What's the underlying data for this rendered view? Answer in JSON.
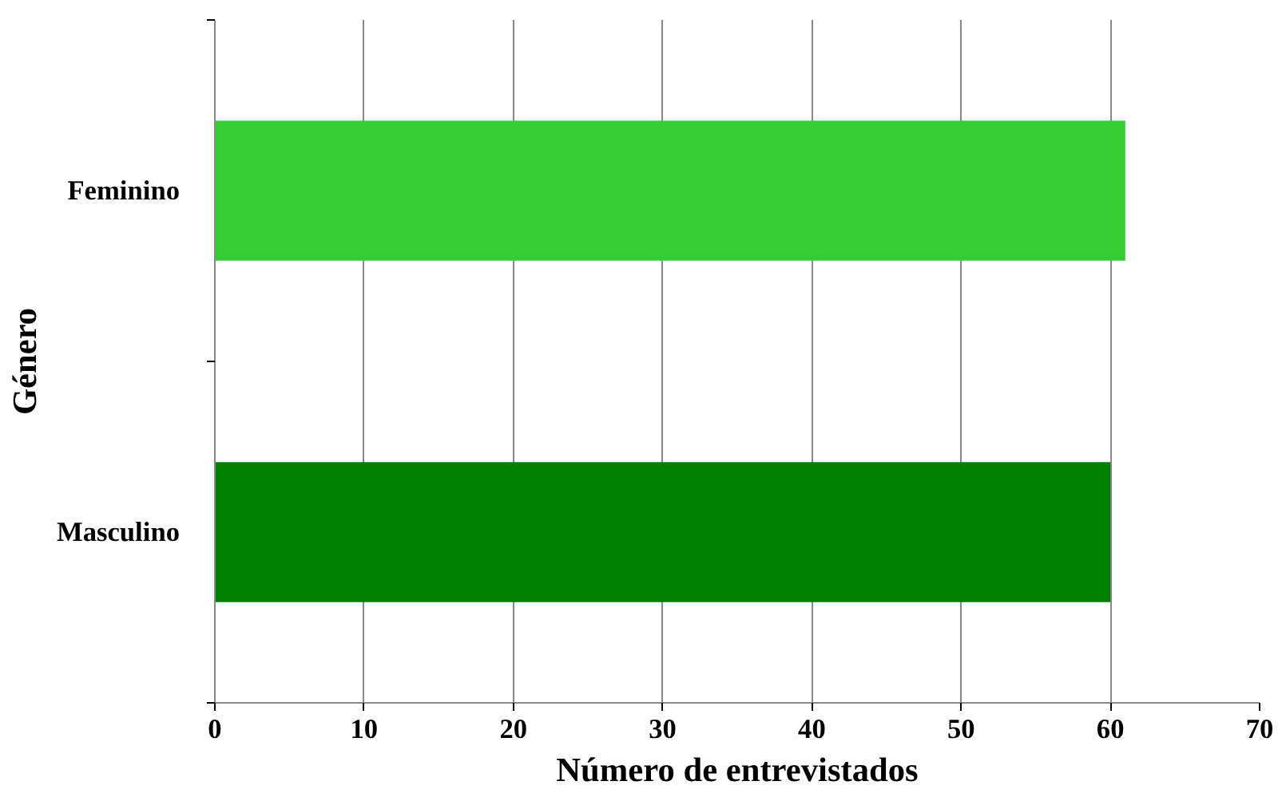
{
  "chart_data": {
    "type": "bar",
    "orientation": "horizontal",
    "categories": [
      "Feminino",
      "Masculino"
    ],
    "values": [
      61,
      60
    ],
    "colors": [
      "#33cc33",
      "#008000"
    ],
    "xlim": [
      0,
      70
    ],
    "xticks": [
      0,
      10,
      20,
      30,
      40,
      50,
      60,
      70
    ],
    "xlabel": "Número de entrevistados",
    "ylabel": "Género",
    "grid": "x"
  }
}
